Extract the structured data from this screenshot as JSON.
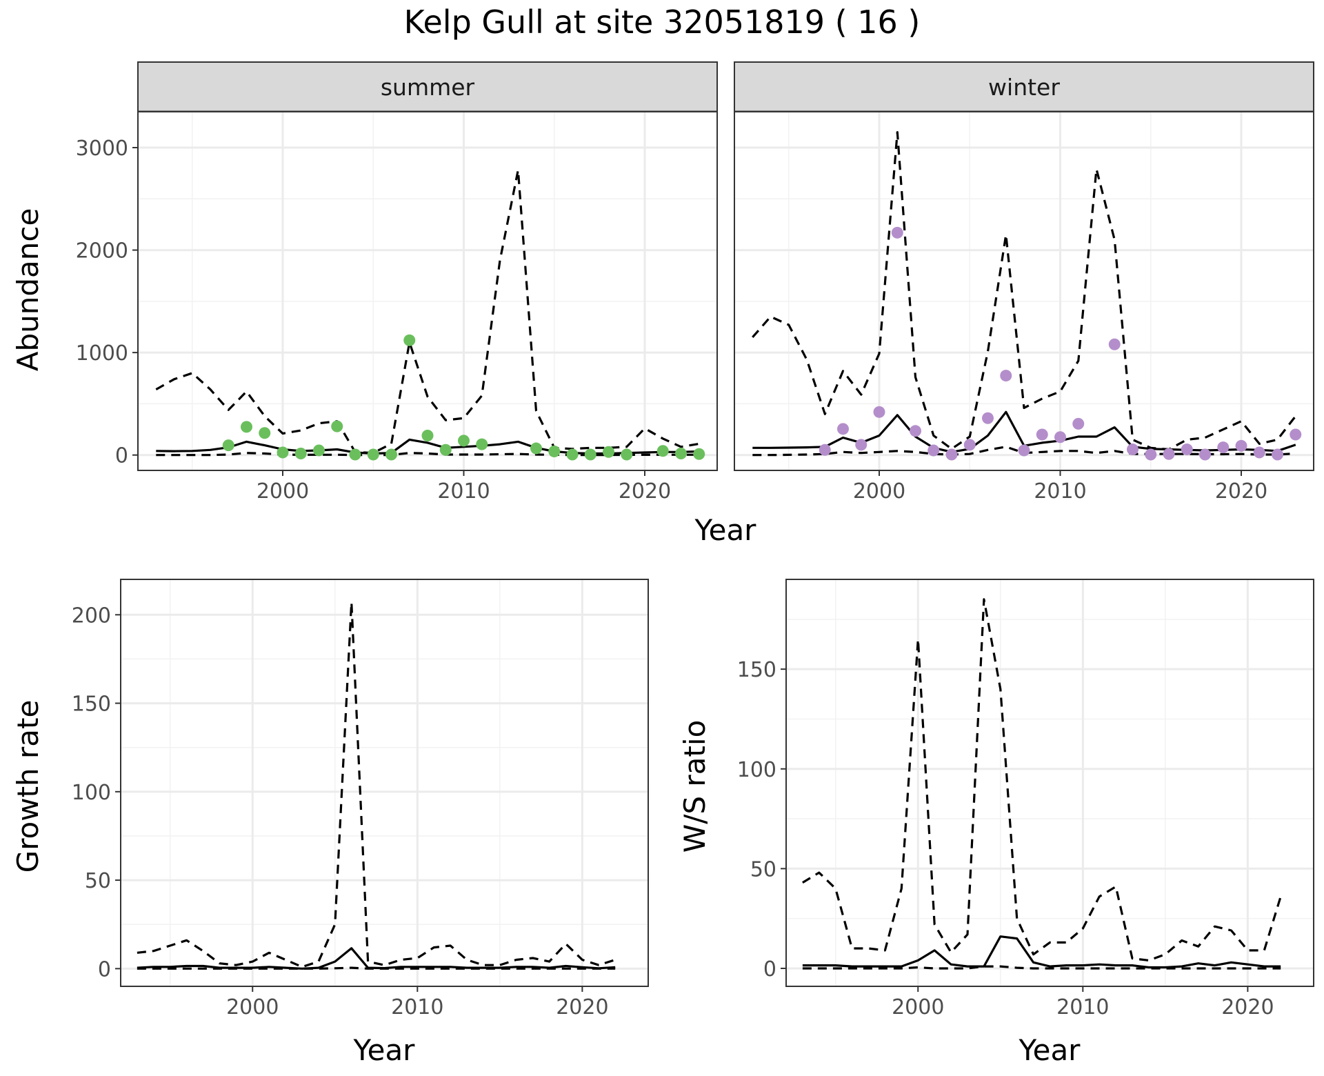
{
  "title": "Kelp Gull at site 32051819 ( 16 )",
  "chart_data": [
    {
      "type": "line",
      "panel": "summer",
      "xlabel": "Year",
      "ylabel": "Abundance",
      "xlim": [
        1992,
        2024
      ],
      "ylim": [
        -150,
        3350
      ],
      "xticks": [
        2000,
        2010,
        2020
      ],
      "yticks": [
        0,
        1000,
        2000,
        3000
      ],
      "points_color": "#6abf5c",
      "series": [
        {
          "style": "solid",
          "x": [
            1993,
            1994,
            1995,
            1996,
            1997,
            1998,
            1999,
            2000,
            2001,
            2002,
            2003,
            2004,
            2005,
            2006,
            2007,
            2008,
            2009,
            2010,
            2011,
            2012,
            2013,
            2014,
            2015,
            2016,
            2017,
            2018,
            2019,
            2020,
            2021,
            2022,
            2023
          ],
          "values": [
            40,
            38,
            40,
            50,
            75,
            130,
            95,
            55,
            40,
            45,
            55,
            25,
            15,
            20,
            150,
            120,
            70,
            80,
            90,
            105,
            130,
            70,
            35,
            20,
            15,
            15,
            20,
            25,
            30,
            30,
            35
          ]
        },
        {
          "style": "dashed",
          "x": [
            1993,
            1994,
            1995,
            1996,
            1997,
            1998,
            1999,
            2000,
            2001,
            2002,
            2003,
            2004,
            2005,
            2006,
            2007,
            2008,
            2009,
            2010,
            2011,
            2012,
            2013,
            2014,
            2015,
            2016,
            2017,
            2018,
            2019,
            2020,
            2021,
            2022,
            2023
          ],
          "values": [
            640,
            740,
            800,
            640,
            440,
            620,
            380,
            210,
            240,
            310,
            330,
            30,
            20,
            110,
            1100,
            570,
            340,
            360,
            580,
            1900,
            2780,
            430,
            70,
            60,
            70,
            70,
            80,
            260,
            160,
            80,
            110
          ]
        },
        {
          "style": "dashed",
          "x": [
            1993,
            1994,
            1995,
            1996,
            1997,
            1998,
            1999,
            2000,
            2001,
            2002,
            2003,
            2004,
            2005,
            2006,
            2007,
            2008,
            2009,
            2010,
            2011,
            2012,
            2013,
            2014,
            2015,
            2016,
            2017,
            2018,
            2019,
            2020,
            2021,
            2022,
            2023
          ],
          "values": [
            0,
            0,
            0,
            0,
            5,
            20,
            15,
            5,
            2,
            3,
            3,
            1,
            0,
            1,
            20,
            15,
            5,
            5,
            5,
            8,
            10,
            5,
            2,
            1,
            1,
            1,
            2,
            2,
            3,
            3,
            3
          ]
        },
        {
          "style": "points",
          "x": [
            1997,
            1998,
            1999,
            2000,
            2001,
            2002,
            2003,
            2004,
            2005,
            2006,
            2007,
            2008,
            2009,
            2010,
            2011,
            2014,
            2015,
            2016,
            2017,
            2018,
            2019,
            2021,
            2022,
            2023
          ],
          "values": [
            95,
            275,
            215,
            25,
            15,
            45,
            280,
            5,
            5,
            5,
            1120,
            190,
            50,
            140,
            105,
            65,
            35,
            5,
            5,
            30,
            5,
            40,
            15,
            10
          ]
        }
      ]
    },
    {
      "type": "line",
      "panel": "winter",
      "xlabel": "Year",
      "ylabel": "Abundance",
      "xlim": [
        1992,
        2024
      ],
      "ylim": [
        -150,
        3350
      ],
      "xticks": [
        2000,
        2010,
        2020
      ],
      "yticks": [
        0,
        1000,
        2000,
        3000
      ],
      "points_color": "#b48ecb",
      "series": [
        {
          "style": "solid",
          "x": [
            1993,
            1994,
            1995,
            1996,
            1997,
            1998,
            1999,
            2000,
            2001,
            2002,
            2003,
            2004,
            2005,
            2006,
            2007,
            2008,
            2009,
            2010,
            2011,
            2012,
            2013,
            2014,
            2015,
            2016,
            2017,
            2018,
            2019,
            2020,
            2021,
            2022,
            2023
          ],
          "values": [
            70,
            70,
            72,
            75,
            80,
            170,
            120,
            190,
            390,
            180,
            70,
            30,
            60,
            190,
            420,
            90,
            120,
            140,
            180,
            180,
            270,
            80,
            60,
            55,
            50,
            45,
            50,
            55,
            50,
            40,
            100
          ]
        },
        {
          "style": "dashed",
          "x": [
            1993,
            1994,
            1995,
            1996,
            1997,
            1998,
            1999,
            2000,
            2001,
            2002,
            2003,
            2004,
            2005,
            2006,
            2007,
            2008,
            2009,
            2010,
            2011,
            2012,
            2013,
            2014,
            2015,
            2016,
            2017,
            2018,
            2019,
            2020,
            2021,
            2022,
            2023
          ],
          "values": [
            1150,
            1350,
            1270,
            930,
            400,
            820,
            590,
            990,
            3150,
            760,
            190,
            60,
            180,
            1010,
            2150,
            460,
            550,
            620,
            920,
            2790,
            2100,
            150,
            70,
            55,
            150,
            170,
            250,
            330,
            110,
            150,
            380
          ]
        },
        {
          "style": "dashed",
          "x": [
            1993,
            1994,
            1995,
            1996,
            1997,
            1998,
            1999,
            2000,
            2001,
            2002,
            2003,
            2004,
            2005,
            2006,
            2007,
            2008,
            2009,
            2010,
            2011,
            2012,
            2013,
            2014,
            2015,
            2016,
            2017,
            2018,
            2019,
            2020,
            2021,
            2022,
            2023
          ],
          "values": [
            0,
            0,
            2,
            5,
            10,
            30,
            20,
            30,
            40,
            30,
            10,
            5,
            10,
            50,
            80,
            20,
            30,
            40,
            40,
            20,
            40,
            10,
            10,
            10,
            10,
            8,
            8,
            10,
            5,
            5,
            15
          ]
        },
        {
          "style": "points",
          "x": [
            1997,
            1998,
            1999,
            2000,
            2001,
            2002,
            2003,
            2004,
            2005,
            2006,
            2007,
            2008,
            2009,
            2010,
            2011,
            2013,
            2014,
            2015,
            2016,
            2017,
            2018,
            2019,
            2020,
            2021,
            2022,
            2023
          ],
          "values": [
            50,
            255,
            100,
            420,
            2170,
            235,
            45,
            5,
            100,
            360,
            775,
            45,
            200,
            175,
            305,
            1080,
            55,
            5,
            10,
            55,
            5,
            75,
            90,
            25,
            5,
            200
          ]
        }
      ]
    },
    {
      "type": "line",
      "panel": "growth",
      "xlabel": "Year",
      "ylabel": "Growth rate",
      "xlim": [
        1992,
        2024
      ],
      "ylim": [
        -10,
        220
      ],
      "xticks": [
        2000,
        2010,
        2020
      ],
      "yticks": [
        0,
        50,
        100,
        150,
        200
      ],
      "series": [
        {
          "style": "solid",
          "x": [
            1993,
            1994,
            1995,
            1996,
            1997,
            1998,
            1999,
            2000,
            2001,
            2002,
            2003,
            2004,
            2005,
            2006,
            2007,
            2008,
            2009,
            2010,
            2011,
            2012,
            2013,
            2014,
            2015,
            2016,
            2017,
            2018,
            2019,
            2020,
            2021,
            2022
          ],
          "values": [
            0.5,
            1,
            1,
            1.5,
            1.5,
            0.5,
            0.5,
            0.5,
            1,
            0.5,
            0,
            0.5,
            4,
            11.5,
            0.5,
            0.3,
            1,
            1,
            1,
            1,
            0.5,
            0.5,
            0.5,
            1,
            1,
            0.5,
            1.5,
            0.8,
            0.2,
            0.8
          ]
        },
        {
          "style": "dashed",
          "x": [
            1993,
            1994,
            1995,
            1996,
            1997,
            1998,
            1999,
            2000,
            2001,
            2002,
            2003,
            2004,
            2005,
            2006,
            2007,
            2008,
            2009,
            2010,
            2011,
            2012,
            2013,
            2014,
            2015,
            2016,
            2017,
            2018,
            2019,
            2020,
            2021,
            2022
          ],
          "values": [
            9,
            10,
            13,
            16,
            10,
            3,
            2,
            4,
            9,
            5,
            1,
            4,
            25,
            207,
            4,
            2,
            5,
            6,
            12,
            13,
            5,
            2,
            2,
            5,
            6,
            4,
            14,
            5,
            2,
            5
          ]
        },
        {
          "style": "dashed",
          "x": [
            1993,
            1994,
            1995,
            1996,
            1997,
            1998,
            1999,
            2000,
            2001,
            2002,
            2003,
            2004,
            2005,
            2006,
            2007,
            2008,
            2009,
            2010,
            2011,
            2012,
            2013,
            2014,
            2015,
            2016,
            2017,
            2018,
            2019,
            2020,
            2021,
            2022
          ],
          "values": [
            0,
            0,
            0,
            0,
            0,
            0,
            0,
            0,
            0,
            0,
            0,
            0,
            0.2,
            0.5,
            0,
            0,
            0,
            0,
            0,
            0,
            0,
            0,
            0,
            0,
            0,
            0,
            0,
            0,
            0,
            0
          ]
        }
      ]
    },
    {
      "type": "line",
      "panel": "ws_ratio",
      "xlabel": "Year",
      "ylabel": "W/S ratio",
      "xlim": [
        1992,
        2024
      ],
      "ylim": [
        -9,
        195
      ],
      "xticks": [
        2000,
        2010,
        2020
      ],
      "yticks": [
        0,
        50,
        100,
        150
      ],
      "series": [
        {
          "style": "solid",
          "x": [
            1993,
            1994,
            1995,
            1996,
            1997,
            1998,
            1999,
            2000,
            2001,
            2002,
            2003,
            2004,
            2005,
            2006,
            2007,
            2008,
            2009,
            2010,
            2011,
            2012,
            2013,
            2014,
            2015,
            2016,
            2017,
            2018,
            2019,
            2020,
            2021,
            2022
          ],
          "values": [
            1.5,
            1.5,
            1.5,
            1,
            1,
            1,
            1,
            4,
            9,
            2,
            1,
            1,
            16,
            15,
            3,
            1,
            1.5,
            1.5,
            2,
            1.5,
            1.5,
            0.5,
            0.5,
            1,
            2.5,
            1.5,
            3,
            2,
            1,
            1
          ]
        },
        {
          "style": "dashed",
          "x": [
            1993,
            1994,
            1995,
            1996,
            1997,
            1998,
            1999,
            2000,
            2001,
            2002,
            2003,
            2004,
            2005,
            2006,
            2007,
            2008,
            2009,
            2010,
            2011,
            2012,
            2013,
            2014,
            2015,
            2016,
            2017,
            2018,
            2019,
            2020,
            2021,
            2022
          ],
          "values": [
            43,
            48,
            40,
            10,
            10,
            9,
            40,
            165,
            22,
            8,
            17,
            185,
            140,
            25,
            7,
            13,
            13,
            20,
            36,
            41,
            5,
            4,
            7,
            14,
            11,
            21,
            19,
            9,
            9,
            36
          ]
        },
        {
          "style": "dashed",
          "x": [
            1993,
            1994,
            1995,
            1996,
            1997,
            1998,
            1999,
            2000,
            2001,
            2002,
            2003,
            2004,
            2005,
            2006,
            2007,
            2008,
            2009,
            2010,
            2011,
            2012,
            2013,
            2014,
            2015,
            2016,
            2017,
            2018,
            2019,
            2020,
            2021,
            2022
          ],
          "values": [
            0,
            0,
            0,
            0,
            0,
            0,
            0,
            0.5,
            0,
            0,
            0,
            1,
            1,
            0.3,
            0,
            0,
            0,
            0,
            0,
            0,
            0,
            0,
            0,
            0,
            0,
            0,
            0,
            0,
            0,
            0
          ]
        }
      ]
    }
  ]
}
